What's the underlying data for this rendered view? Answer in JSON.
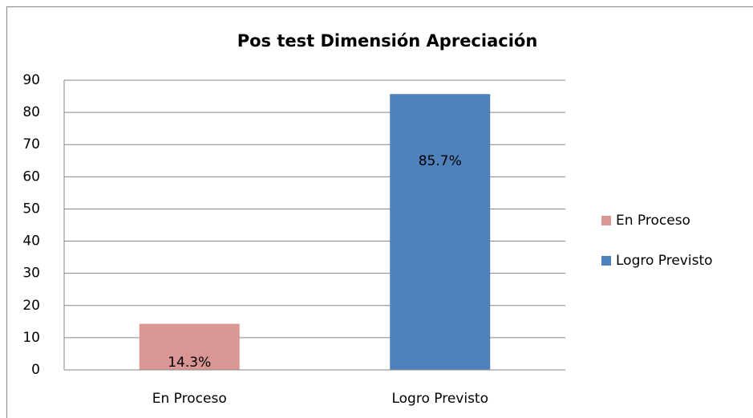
{
  "chart_data": {
    "type": "bar",
    "title": "Pos test Dimensión Apreciación",
    "categories": [
      "En Proceso",
      "Logro Previsto"
    ],
    "series": [
      {
        "name": "En Proceso",
        "color": "#d99694",
        "values": [
          14.3,
          null
        ],
        "value_labels": [
          "14.3%",
          null
        ]
      },
      {
        "name": "Logro Previsto",
        "color": "#4f81bd",
        "values": [
          null,
          85.7
        ],
        "value_labels": [
          null,
          "85.7%"
        ]
      }
    ],
    "ylim": [
      0,
      90
    ],
    "yticks": [
      0,
      10,
      20,
      30,
      40,
      50,
      60,
      70,
      80,
      90
    ],
    "grid": true,
    "legend": "right"
  }
}
